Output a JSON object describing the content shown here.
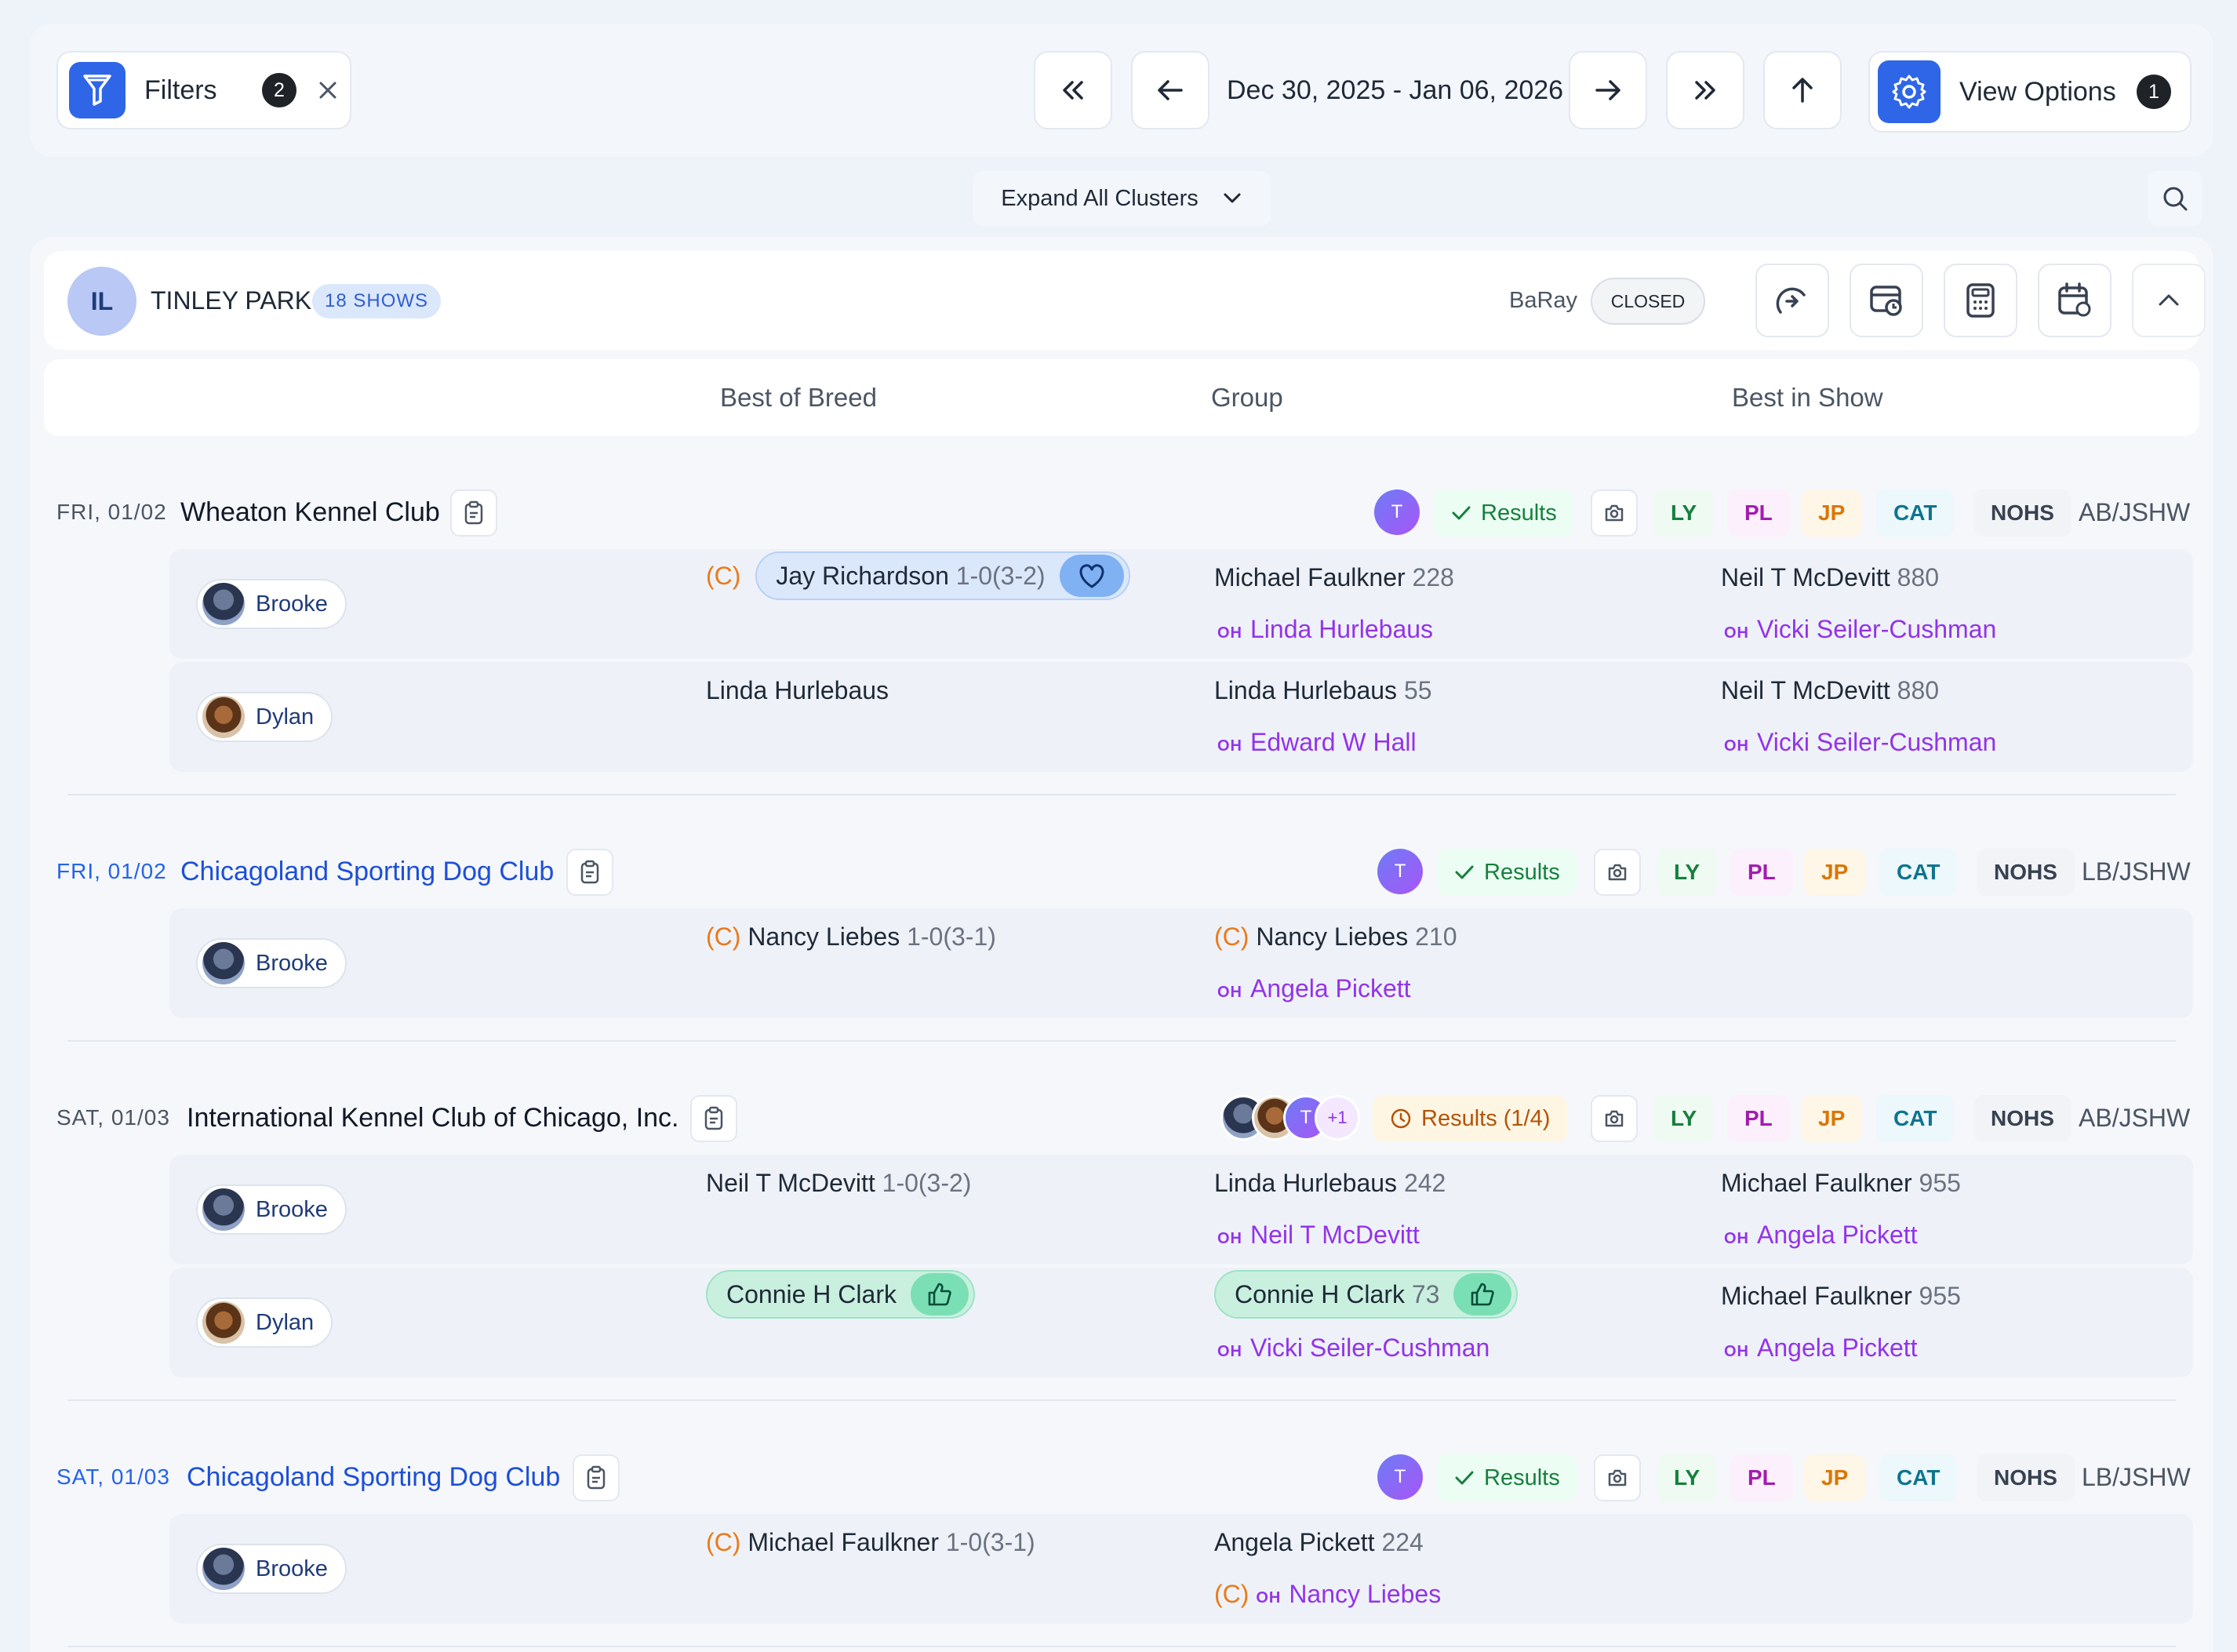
{
  "topbar": {
    "filters_label": "Filters",
    "filters_count": "2",
    "date_range": "Dec 30, 2025 - Jan 06, 2026",
    "view_options_label": "View Options",
    "view_options_count": "1",
    "expand_label": "Expand All Clusters"
  },
  "location": {
    "state": "IL",
    "name": "TINLEY PARK",
    "shows_badge": "18 SHOWS",
    "user": "BaRay",
    "status": "CLOSED"
  },
  "columns": {
    "bob": "Best of Breed",
    "group": "Group",
    "bis": "Best in Show"
  },
  "common": {
    "results": "Results",
    "results_partial": "Results",
    "results_partial_count": "(1/4)",
    "user_initial": "T",
    "plus_more": "+1",
    "tags": [
      "LY",
      "PL",
      "JP",
      "CAT",
      "NOHS"
    ],
    "oh": "OH",
    "c_mark": "(C)"
  },
  "shows": [
    {
      "date": "FRI, 01/02",
      "club": "Wheaton Kennel Club",
      "region": "AB/JSHW",
      "rows": [
        {
          "handler": "Brooke",
          "bob_name": "Jay Richardson",
          "bob_record": "1-0(3-2)",
          "group_name": "Michael Faulkner",
          "group_num": "228",
          "group_oh": "Linda Hurlebaus",
          "bis_name": "Neil T McDevitt",
          "bis_num": "880",
          "bis_oh": "Vicki Seiler-Cushman"
        },
        {
          "handler": "Dylan",
          "bob_name": "Linda Hurlebaus",
          "group_name": "Linda Hurlebaus",
          "group_num": "55",
          "group_oh": "Edward W Hall",
          "bis_name": "Neil T McDevitt",
          "bis_num": "880",
          "bis_oh": "Vicki Seiler-Cushman"
        }
      ]
    },
    {
      "date": "FRI, 01/02",
      "club": "Chicagoland Sporting Dog Club",
      "region": "LB/JSHW",
      "rows": [
        {
          "handler": "Brooke",
          "bob_name": "Nancy Liebes",
          "bob_record": "1-0(3-1)",
          "group_name": "Nancy Liebes",
          "group_num": "210",
          "group_oh": "Angela Pickett"
        }
      ]
    },
    {
      "date": "SAT, 01/03",
      "club": "International Kennel Club of Chicago, Inc.",
      "region": "AB/JSHW",
      "rows": [
        {
          "handler": "Brooke",
          "bob_name": "Neil T McDevitt",
          "bob_record": "1-0(3-2)",
          "group_name": "Linda Hurlebaus",
          "group_num": "242",
          "group_oh": "Neil T McDevitt",
          "bis_name": "Michael Faulkner",
          "bis_num": "955",
          "bis_oh": "Angela Pickett"
        },
        {
          "handler": "Dylan",
          "bob_name": "Connie H Clark",
          "group_name": "Connie H Clark",
          "group_num": "73",
          "group_oh": "Vicki Seiler-Cushman",
          "bis_name": "Michael Faulkner",
          "bis_num": "955",
          "bis_oh": "Angela Pickett"
        }
      ]
    },
    {
      "date": "SAT, 01/03",
      "club": "Chicagoland Sporting Dog Club",
      "region": "LB/JSHW",
      "rows": [
        {
          "handler": "Brooke",
          "bob_name": "Michael Faulkner",
          "bob_record": "1-0(3-1)",
          "group_name": "Angela Pickett",
          "group_num": "224",
          "group_oh": "Nancy Liebes"
        }
      ]
    }
  ],
  "colors": {
    "accent": "#2f66e8",
    "oh_purple": "#9333ea",
    "c_orange": "#ea7a1a",
    "results_green": "#15803d"
  }
}
